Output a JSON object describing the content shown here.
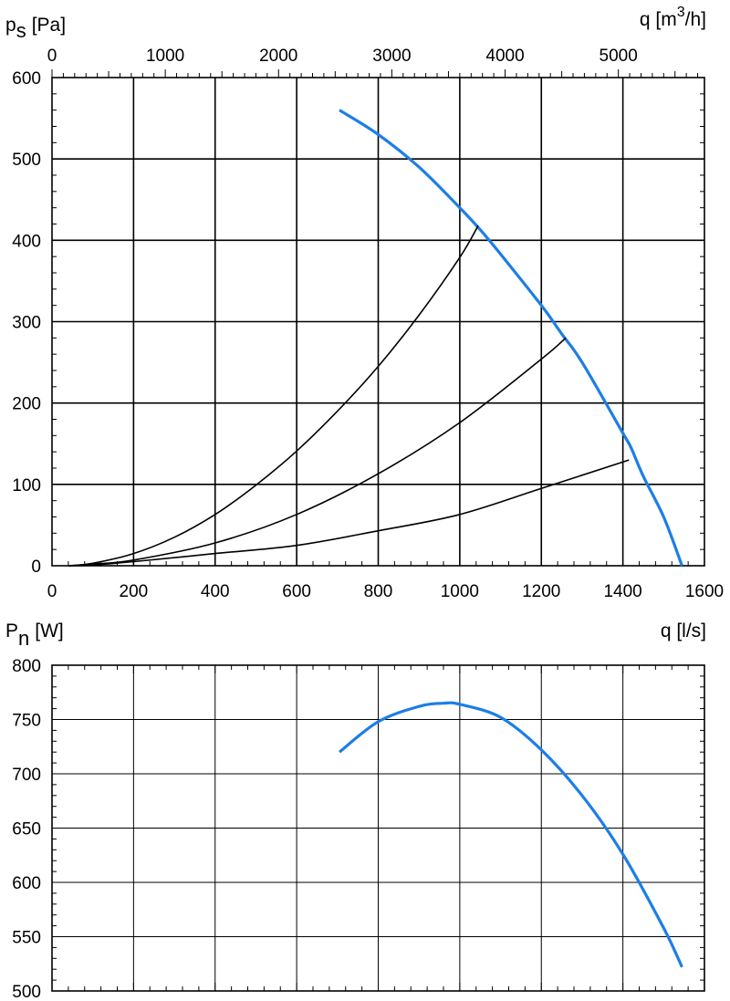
{
  "colors": {
    "fan_curve": "#1c7ee6",
    "grid": "#000000"
  },
  "chart_data": [
    {
      "type": "line",
      "ylabel": {
        "base": "p",
        "sub": "s",
        "unit": "[Pa]"
      },
      "x2label": {
        "prefix": "q [m",
        "sup": "3",
        "suffix": "/h]"
      },
      "xlabel": "q [l/s]",
      "xlim": [
        0,
        1600
      ],
      "ylim": [
        0,
        600
      ],
      "x_ticks": [
        "0",
        "200",
        "400",
        "600",
        "800",
        "1000",
        "1200",
        "1400",
        "1600"
      ],
      "y_ticks": [
        "0",
        "100",
        "200",
        "300",
        "400",
        "500",
        "600"
      ],
      "x2_ticks": [
        "0",
        "1000",
        "2000",
        "3000",
        "4000",
        "5000"
      ],
      "x2_conversion_m3h_per_ls": 3.6,
      "grid": true,
      "series": [
        {
          "kind": "fan",
          "x": [
            705,
            800,
            900,
            1000,
            1050,
            1100,
            1200,
            1250,
            1300,
            1400,
            1420,
            1450,
            1500,
            1545
          ],
          "y": [
            560,
            530,
            490,
            440,
            413,
            383,
            320,
            285,
            250,
            163,
            145,
            110,
            60,
            0
          ]
        },
        {
          "kind": "system",
          "x": [
            40,
            100,
            200,
            300,
            400,
            500,
            600,
            700,
            800,
            900,
            1000,
            1045
          ],
          "y": [
            0,
            3,
            15,
            35,
            63,
            99,
            141,
            190,
            245,
            308,
            379,
            418
          ]
        },
        {
          "kind": "system",
          "x": [
            40,
            100,
            200,
            400,
            600,
            800,
            1000,
            1200,
            1260
          ],
          "y": [
            0,
            2,
            7,
            28,
            63,
            113,
            176,
            254,
            280
          ]
        },
        {
          "kind": "system",
          "x": [
            40,
            100,
            200,
            400,
            600,
            800,
            1000,
            1200,
            1415
          ],
          "y": [
            0,
            1,
            5,
            15,
            25,
            43,
            63,
            95,
            130
          ]
        }
      ]
    },
    {
      "type": "line",
      "ylabel": {
        "base": "P",
        "sub": "n",
        "unit": "[W]"
      },
      "xlabel": "q [l/s]",
      "xlim": [
        0,
        1600
      ],
      "ylim": [
        500,
        800
      ],
      "y_ticks": [
        "500",
        "550",
        "600",
        "650",
        "700",
        "750",
        "800"
      ],
      "grid": true,
      "series": [
        {
          "kind": "fan",
          "x": [
            705,
            800,
            900,
            960,
            1000,
            1100,
            1200,
            1300,
            1400,
            1500,
            1545
          ],
          "y": [
            720,
            748,
            762,
            765,
            764,
            752,
            722,
            680,
            626,
            558,
            522
          ]
        }
      ]
    }
  ]
}
